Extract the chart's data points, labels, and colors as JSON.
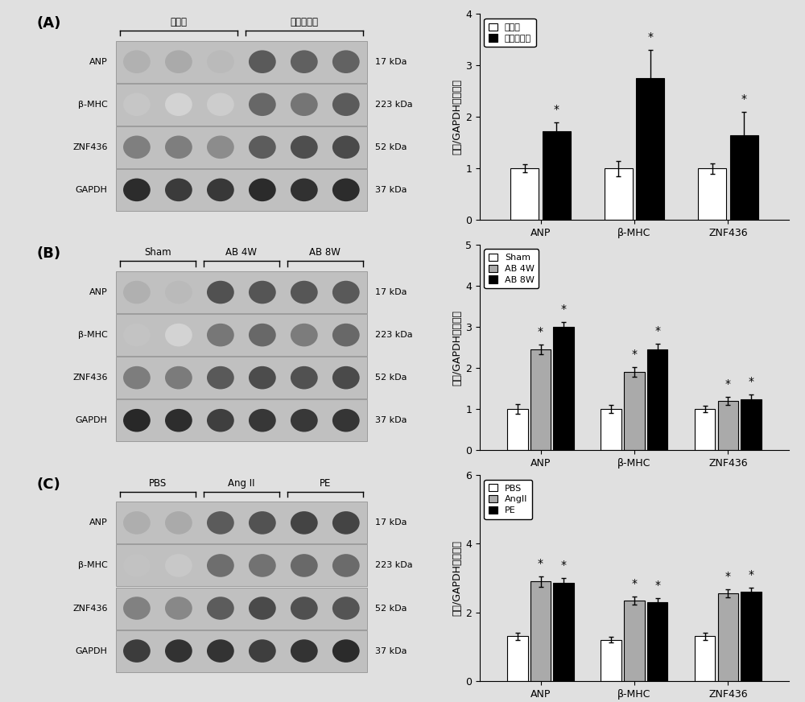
{
  "fig_bg": "#e0e0e0",
  "panel_labels": [
    "(A)",
    "(B)",
    "(C)"
  ],
  "band_labels": [
    "ANP",
    "β-MHC",
    "ZNF436",
    "GAPDH"
  ],
  "kda_labels": [
    "17 kDa",
    "223 kDa",
    "52 kDa",
    "37 kDa"
  ],
  "panel_A_group_labels": [
    "正常人",
    "扩心病患者"
  ],
  "panel_A_n_lanes": [
    3,
    3
  ],
  "panel_B_group_labels": [
    "Sham",
    "AB 4W",
    "AB 8W"
  ],
  "panel_B_n_lanes": [
    2,
    2,
    2
  ],
  "panel_C_group_labels": [
    "PBS",
    "Ang II",
    "PE"
  ],
  "panel_C_n_lanes": [
    2,
    2,
    2
  ],
  "panel_A": {
    "categories": [
      "ANP",
      "β-MHC",
      "ZNF436"
    ],
    "groups": [
      "正常人",
      "扩心病患者"
    ],
    "values": [
      [
        1.0,
        1.0,
        1.0
      ],
      [
        1.72,
        2.75,
        1.65
      ]
    ],
    "errors": [
      [
        0.08,
        0.15,
        0.1
      ],
      [
        0.18,
        0.55,
        0.45
      ]
    ],
    "colors": [
      "#ffffff",
      "#000000"
    ],
    "ylim": [
      0,
      4
    ],
    "yticks": [
      0,
      1,
      2,
      3,
      4
    ],
    "ylabel": "蛋白/GAPDH（倍数）",
    "legend_labels": [
      "正常人",
      "扩心病患者"
    ],
    "stars": [
      [
        false,
        false,
        false
      ],
      [
        true,
        true,
        true
      ]
    ]
  },
  "panel_B": {
    "categories": [
      "ANP",
      "β-MHC",
      "ZNF436"
    ],
    "groups": [
      "Sham",
      "AB 4W",
      "AB 8W"
    ],
    "values": [
      [
        1.0,
        1.0,
        1.0
      ],
      [
        2.45,
        1.9,
        1.2
      ],
      [
        3.0,
        2.45,
        1.25
      ]
    ],
    "errors": [
      [
        0.12,
        0.1,
        0.08
      ],
      [
        0.12,
        0.12,
        0.1
      ],
      [
        0.12,
        0.15,
        0.1
      ]
    ],
    "colors": [
      "#ffffff",
      "#aaaaaa",
      "#000000"
    ],
    "ylim": [
      0,
      5
    ],
    "yticks": [
      0,
      1,
      2,
      3,
      4,
      5
    ],
    "ylabel": "蛋白/GAPDH（倍数）",
    "legend_labels": [
      "Sham",
      "AB 4W",
      "AB 8W"
    ],
    "stars": [
      [
        false,
        false,
        false
      ],
      [
        true,
        true,
        true
      ],
      [
        true,
        true,
        true
      ]
    ]
  },
  "panel_C": {
    "categories": [
      "ANP",
      "β-MHC",
      "ZNF436"
    ],
    "groups": [
      "PBS",
      "AngII",
      "PE"
    ],
    "values": [
      [
        1.3,
        1.2,
        1.3
      ],
      [
        2.9,
        2.35,
        2.55
      ],
      [
        2.85,
        2.3,
        2.6
      ]
    ],
    "errors": [
      [
        0.1,
        0.08,
        0.1
      ],
      [
        0.15,
        0.12,
        0.12
      ],
      [
        0.15,
        0.12,
        0.12
      ]
    ],
    "colors": [
      "#ffffff",
      "#aaaaaa",
      "#000000"
    ],
    "ylim": [
      0,
      6
    ],
    "yticks": [
      0,
      2,
      4,
      6
    ],
    "ylabel": "蛋白/GAPDH（倍数）",
    "legend_labels": [
      "PBS",
      "AngII",
      "PE"
    ],
    "stars": [
      [
        false,
        false,
        false
      ],
      [
        true,
        true,
        true
      ],
      [
        true,
        true,
        true
      ]
    ]
  }
}
